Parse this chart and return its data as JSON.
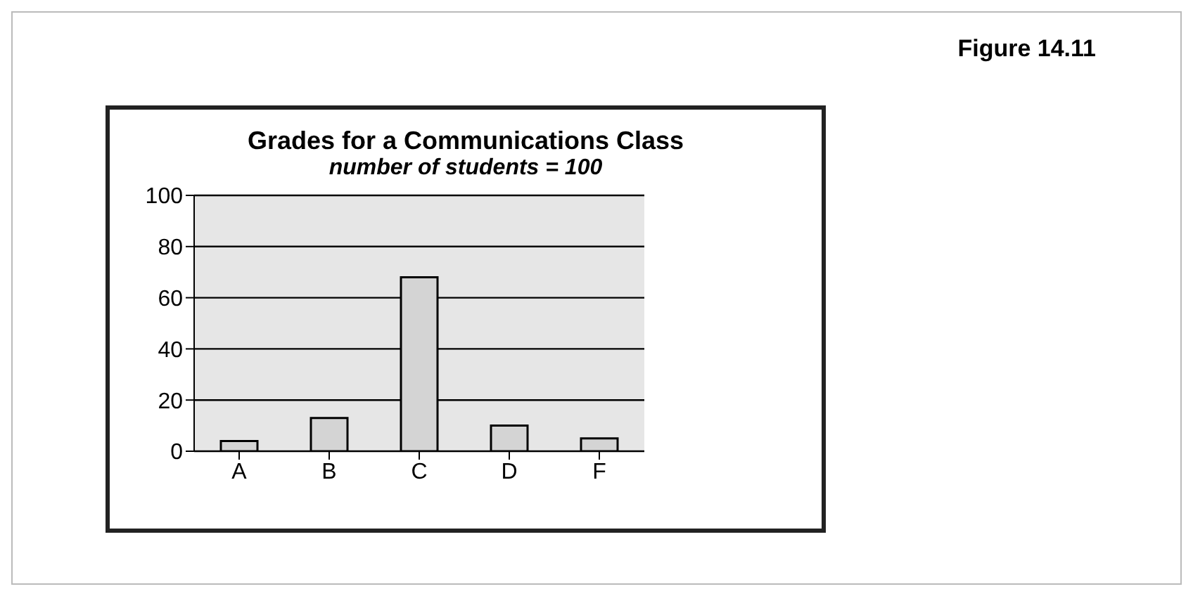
{
  "chart_data": {
    "type": "bar",
    "title": "Grades for a Communications Class",
    "subtitle": "number of students = 100",
    "categories": [
      "A",
      "B",
      "C",
      "D",
      "F"
    ],
    "values": [
      4,
      13,
      68,
      10,
      5
    ],
    "color": "#d4d4d4",
    "ylim": [
      0,
      100
    ],
    "yticks": [
      0,
      20,
      40,
      60,
      80,
      100
    ],
    "grid": "y",
    "legend": false,
    "annotations": [
      "Figure 14.11"
    ]
  }
}
